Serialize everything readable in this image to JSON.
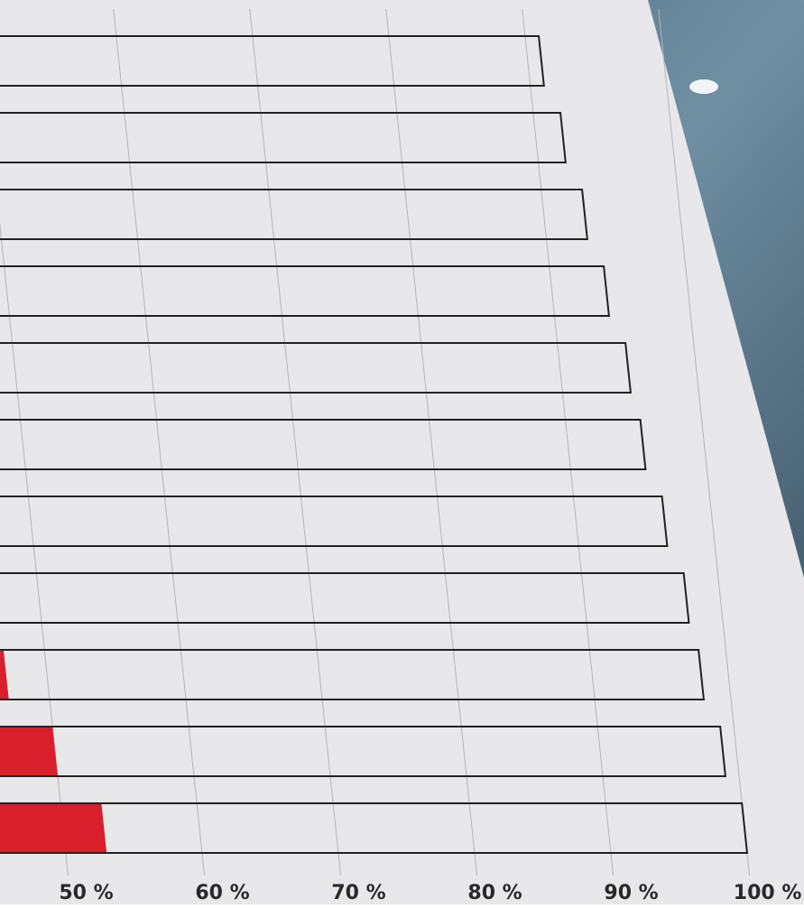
{
  "chart_data": {
    "type": "bar",
    "orientation": "horizontal",
    "series": [
      {
        "color": "#222222",
        "values": [
          91,
          92,
          93,
          94,
          95,
          95.5,
          96.5,
          97.5,
          98,
          99,
          100
        ]
      },
      {
        "color": "#d91f2b",
        "values": [
          null,
          null,
          null,
          null,
          null,
          null,
          null,
          null,
          47,
          50,
          53
        ]
      }
    ],
    "xlim": [
      45,
      104
    ],
    "xticks": [
      {
        "value": 50,
        "label": "50 %"
      },
      {
        "value": 60,
        "label": "60 %"
      },
      {
        "value": 70,
        "label": "70 %"
      },
      {
        "value": 80,
        "label": "80 %"
      },
      {
        "value": 90,
        "label": "90 %"
      },
      {
        "value": 100,
        "label": "100 %"
      }
    ],
    "grid": true
  }
}
